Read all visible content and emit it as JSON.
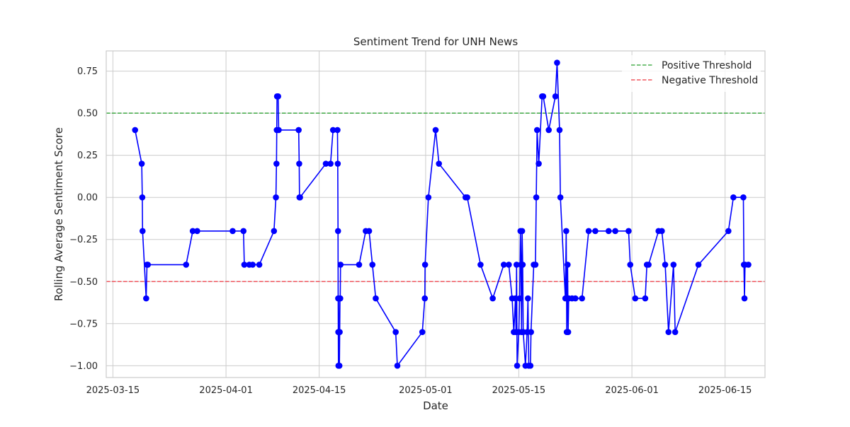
{
  "chart_data": {
    "type": "line",
    "title": "Sentiment Trend for UNH News",
    "xlabel": "Date",
    "ylabel": "Rolling Average Sentiment Score",
    "xlim": [
      "2025-03-14",
      "2025-06-21"
    ],
    "ylim": [
      -1.07,
      0.87
    ],
    "x_ticks": [
      "2025-03-15",
      "2025-04-01",
      "2025-04-15",
      "2025-05-01",
      "2025-05-15",
      "2025-06-01",
      "2025-06-15"
    ],
    "y_ticks": [
      0.75,
      0.5,
      0.25,
      0.0,
      -0.25,
      -0.5,
      -0.75,
      -1.0
    ],
    "y_tick_labels": [
      "0.75",
      "0.50",
      "0.25",
      "0.00",
      "−0.25",
      "−0.50",
      "−0.75",
      "−1.00"
    ],
    "grid": true,
    "legend_position": "top-right",
    "thresholds": [
      {
        "name": "Positive Threshold",
        "value": 0.5,
        "color": "#4caf50",
        "style": "dashed"
      },
      {
        "name": "Negative Threshold",
        "value": -0.5,
        "color": "#f0565e",
        "style": "dashed"
      }
    ],
    "series": [
      {
        "color": "#0000ff",
        "marker": "circle",
        "points": [
          [
            "2025-03-18T08:00",
            0.4
          ],
          [
            "2025-03-19T08:00",
            0.2
          ],
          [
            "2025-03-19T10:00",
            0.0
          ],
          [
            "2025-03-19T11:00",
            -0.2
          ],
          [
            "2025-03-20T00:00",
            -0.6
          ],
          [
            "2025-03-20T03:00",
            -0.4
          ],
          [
            "2025-03-20T06:00",
            -0.4
          ],
          [
            "2025-03-26T00:00",
            -0.4
          ],
          [
            "2025-03-27T00:00",
            -0.2
          ],
          [
            "2025-03-27T16:00",
            -0.2
          ],
          [
            "2025-04-02T00:00",
            -0.2
          ],
          [
            "2025-04-03T15:00",
            -0.2
          ],
          [
            "2025-04-03T18:00",
            -0.4
          ],
          [
            "2025-04-04T12:00",
            -0.4
          ],
          [
            "2025-04-05T00:00",
            -0.4
          ],
          [
            "2025-04-06T00:00",
            -0.4
          ],
          [
            "2025-04-08T05:00",
            -0.2
          ],
          [
            "2025-04-08T12:00",
            0.0
          ],
          [
            "2025-04-08T14:00",
            0.2
          ],
          [
            "2025-04-08T15:00",
            0.4
          ],
          [
            "2025-04-08T16:00",
            0.6
          ],
          [
            "2025-04-08T20:00",
            0.6
          ],
          [
            "2025-04-08T22:00",
            0.4
          ],
          [
            "2025-04-11T22:00",
            0.4
          ],
          [
            "2025-04-12T00:00",
            0.2
          ],
          [
            "2025-04-12T01:00",
            0.0
          ],
          [
            "2025-04-12T03:00",
            0.0
          ],
          [
            "2025-04-16T00:00",
            0.2
          ],
          [
            "2025-04-16T17:00",
            0.2
          ],
          [
            "2025-04-17T02:00",
            0.4
          ],
          [
            "2025-04-17T18:00",
            0.4
          ],
          [
            "2025-04-17T19:00",
            0.2
          ],
          [
            "2025-04-17T20:00",
            -0.2
          ],
          [
            "2025-04-17T20:30",
            -0.6
          ],
          [
            "2025-04-17T21:00",
            -0.8
          ],
          [
            "2025-04-17T21:30",
            -1.0
          ],
          [
            "2025-04-17T22:00",
            -0.6
          ],
          [
            "2025-04-17T23:00",
            -0.8
          ],
          [
            "2025-04-18T00:00",
            -1.0
          ],
          [
            "2025-04-18T01:00",
            -1.0
          ],
          [
            "2025-04-18T02:00",
            -0.8
          ],
          [
            "2025-04-18T03:00",
            -0.6
          ],
          [
            "2025-04-18T04:00",
            -0.6
          ],
          [
            "2025-04-18T05:00",
            -0.4
          ],
          [
            "2025-04-21T00:00",
            -0.4
          ],
          [
            "2025-04-22T00:00",
            -0.2
          ],
          [
            "2025-04-22T12:00",
            -0.2
          ],
          [
            "2025-04-23T00:00",
            -0.4
          ],
          [
            "2025-04-23T12:00",
            -0.6
          ],
          [
            "2025-04-26T12:00",
            -0.8
          ],
          [
            "2025-04-26T18:00",
            -1.0
          ],
          [
            "2025-04-30T12:00",
            -0.8
          ],
          [
            "2025-04-30T21:00",
            -0.6
          ],
          [
            "2025-04-30T22:00",
            -0.4
          ],
          [
            "2025-05-01T10:00",
            0.0
          ],
          [
            "2025-05-02T12:00",
            0.4
          ],
          [
            "2025-05-03T00:00",
            0.2
          ],
          [
            "2025-05-07T00:00",
            0.0
          ],
          [
            "2025-05-07T06:00",
            0.0
          ],
          [
            "2025-05-09T06:00",
            -0.4
          ],
          [
            "2025-05-11T02:00",
            -0.6
          ],
          [
            "2025-05-12T18:00",
            -0.4
          ],
          [
            "2025-05-13T12:00",
            -0.4
          ],
          [
            "2025-05-14T00:00",
            -0.6
          ],
          [
            "2025-05-14T06:00",
            -0.8
          ],
          [
            "2025-05-14T12:00",
            -0.6
          ],
          [
            "2025-05-14T14:00",
            -0.8
          ],
          [
            "2025-05-14T16:00",
            -0.4
          ],
          [
            "2025-05-14T18:00",
            -1.0
          ],
          [
            "2025-05-15T00:00",
            -0.8
          ],
          [
            "2025-05-15T03:00",
            -0.6
          ],
          [
            "2025-05-15T06:00",
            -0.2
          ],
          [
            "2025-05-15T08:00",
            -0.4
          ],
          [
            "2025-05-15T10:00",
            -0.8
          ],
          [
            "2025-05-15T12:00",
            -0.2
          ],
          [
            "2025-05-15T14:00",
            -0.4
          ],
          [
            "2025-05-15T16:00",
            -0.8
          ],
          [
            "2025-05-16T00:00",
            -1.0
          ],
          [
            "2025-05-16T06:00",
            -0.8
          ],
          [
            "2025-05-16T09:00",
            -0.6
          ],
          [
            "2025-05-16T12:00",
            -1.0
          ],
          [
            "2025-05-16T18:00",
            -1.0
          ],
          [
            "2025-05-16T20:00",
            -0.8
          ],
          [
            "2025-05-17T06:00",
            -0.4
          ],
          [
            "2025-05-17T12:00",
            -0.4
          ],
          [
            "2025-05-17T15:00",
            0.0
          ],
          [
            "2025-05-17T18:00",
            0.4
          ],
          [
            "2025-05-18T00:00",
            0.2
          ],
          [
            "2025-05-18T12:00",
            0.6
          ],
          [
            "2025-05-18T16:00",
            0.6
          ],
          [
            "2025-05-19T12:00",
            0.4
          ],
          [
            "2025-05-20T12:00",
            0.6
          ],
          [
            "2025-05-20T18:00",
            0.8
          ],
          [
            "2025-05-21T03:00",
            0.4
          ],
          [
            "2025-05-21T06:00",
            0.0
          ],
          [
            "2025-05-22T00:00",
            -0.6
          ],
          [
            "2025-05-22T03:00",
            -0.2
          ],
          [
            "2025-05-22T05:00",
            -0.8
          ],
          [
            "2025-05-22T08:00",
            -0.4
          ],
          [
            "2025-05-22T10:00",
            -0.8
          ],
          [
            "2025-05-22T12:00",
            -0.6
          ],
          [
            "2025-05-23T00:00",
            -0.6
          ],
          [
            "2025-05-23T12:00",
            -0.6
          ],
          [
            "2025-05-24T12:00",
            -0.6
          ],
          [
            "2025-05-25T12:00",
            -0.2
          ],
          [
            "2025-05-26T12:00",
            -0.2
          ],
          [
            "2025-05-28T12:00",
            -0.2
          ],
          [
            "2025-05-29T12:00",
            -0.2
          ],
          [
            "2025-05-31T12:00",
            -0.2
          ],
          [
            "2025-05-31T18:00",
            -0.4
          ],
          [
            "2025-06-01T12:00",
            -0.6
          ],
          [
            "2025-06-03T00:00",
            -0.6
          ],
          [
            "2025-06-03T06:00",
            -0.4
          ],
          [
            "2025-06-03T12:00",
            -0.4
          ],
          [
            "2025-06-05T00:00",
            -0.2
          ],
          [
            "2025-06-05T12:00",
            -0.2
          ],
          [
            "2025-06-06T00:00",
            -0.4
          ],
          [
            "2025-06-06T12:00",
            -0.8
          ],
          [
            "2025-06-07T06:00",
            -0.4
          ],
          [
            "2025-06-07T12:00",
            -0.8
          ],
          [
            "2025-06-11T00:00",
            -0.4
          ],
          [
            "2025-06-15T12:00",
            -0.2
          ],
          [
            "2025-06-16T06:00",
            0.0
          ],
          [
            "2025-06-17T18:00",
            0.0
          ],
          [
            "2025-06-17T20:00",
            -0.4
          ],
          [
            "2025-06-17T22:00",
            -0.6
          ],
          [
            "2025-06-18T00:00",
            -0.4
          ],
          [
            "2025-06-18T12:00",
            -0.4
          ]
        ]
      }
    ]
  }
}
